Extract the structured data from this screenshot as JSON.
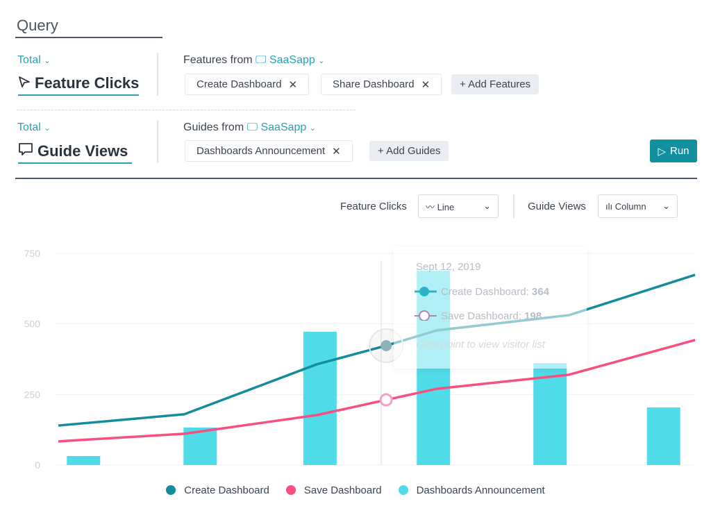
{
  "query": {
    "title": "Query",
    "run_label": "Run",
    "rows": [
      {
        "aggregation": "Total",
        "metric": "Feature Clicks",
        "source_prefix": "Features from",
        "app": "SaaSapp",
        "chips": [
          "Create Dashboard",
          "Share Dashboard"
        ],
        "add_label": "+ Add Features"
      },
      {
        "aggregation": "Total",
        "metric": "Guide Views",
        "source_prefix": "Guides from",
        "app": "SaaSapp",
        "chips": [
          "Dashboards Announcement"
        ],
        "add_label": "+ Add Guides"
      }
    ]
  },
  "controls": {
    "feature_label": "Feature Clicks",
    "feature_type": "Line",
    "guide_label": "Guide Views",
    "guide_type": "Column"
  },
  "tooltip": {
    "date": "Sept 12, 2019",
    "rows": [
      {
        "label": "Create Dashboard:",
        "value": "364"
      },
      {
        "label": "Save Dashboard:",
        "value": "198"
      }
    ],
    "hint": "Click point to view visitor list"
  },
  "chart_data": {
    "type": "line",
    "ylim": [
      0,
      750
    ],
    "yticks": [
      "0",
      "250",
      "500",
      "750"
    ],
    "grid": true,
    "legend_position": "bottom",
    "series": [
      {
        "name": "Create Dashboard",
        "kind": "line",
        "color": "#138d9c",
        "x": [
          0,
          20,
          41,
          52,
          60,
          81,
          101
        ],
        "values": [
          140,
          180,
          357,
          423,
          477,
          531,
          674
        ]
      },
      {
        "name": "Save Dashboard",
        "kind": "line",
        "color": "#f84f7f",
        "x": [
          0,
          20,
          41,
          52,
          60,
          81,
          101
        ],
        "values": [
          84,
          111,
          177,
          231,
          270,
          320,
          443
        ]
      },
      {
        "name": "Dashboards Announcement",
        "kind": "column",
        "color": "#4fdce8",
        "x": [
          4,
          22.5,
          41.5,
          59.5,
          78,
          96
        ],
        "values": [
          32,
          133,
          472,
          688,
          361,
          204
        ]
      }
    ]
  }
}
